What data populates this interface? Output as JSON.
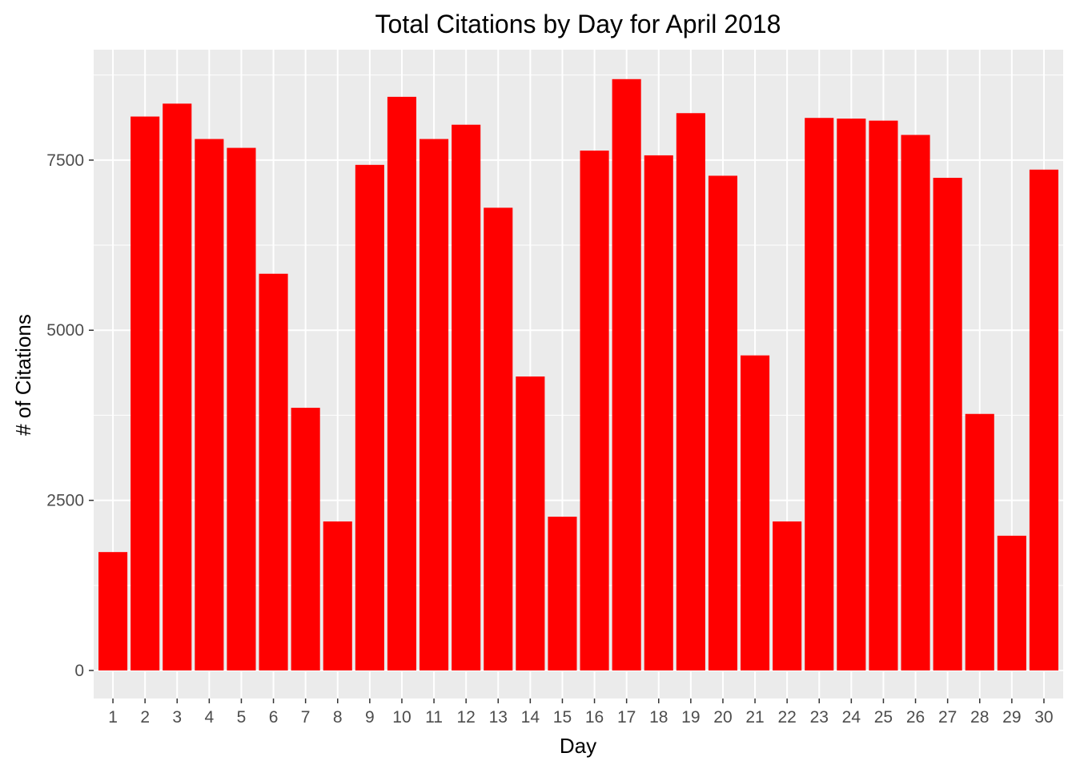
{
  "chart_data": {
    "type": "bar",
    "title": "Total Citations by Day for April 2018",
    "xlabel": "Day",
    "ylabel": "# of Citations",
    "categories": [
      "1",
      "2",
      "3",
      "4",
      "5",
      "6",
      "7",
      "8",
      "9",
      "10",
      "11",
      "12",
      "13",
      "14",
      "15",
      "16",
      "17",
      "18",
      "19",
      "20",
      "21",
      "22",
      "23",
      "24",
      "25",
      "26",
      "27",
      "28",
      "29",
      "30"
    ],
    "values": [
      1740,
      8140,
      8330,
      7810,
      7680,
      5830,
      3860,
      2190,
      7430,
      8430,
      7810,
      8020,
      6800,
      4320,
      2260,
      7640,
      8690,
      7570,
      8190,
      7270,
      4630,
      2190,
      8120,
      8110,
      8080,
      7870,
      7240,
      3770,
      1980,
      7360
    ],
    "y_ticks": [
      0,
      2500,
      5000,
      7500
    ],
    "y_tick_labels": [
      "0",
      "2500",
      "5000",
      "7500"
    ],
    "ylim": [
      -412,
      9123
    ],
    "grid": true,
    "legend": "none",
    "colors": {
      "bar": "#ff0000",
      "panel": "#ebebeb",
      "grid": "#ffffff",
      "tick_label": "#4d4d4d"
    }
  }
}
